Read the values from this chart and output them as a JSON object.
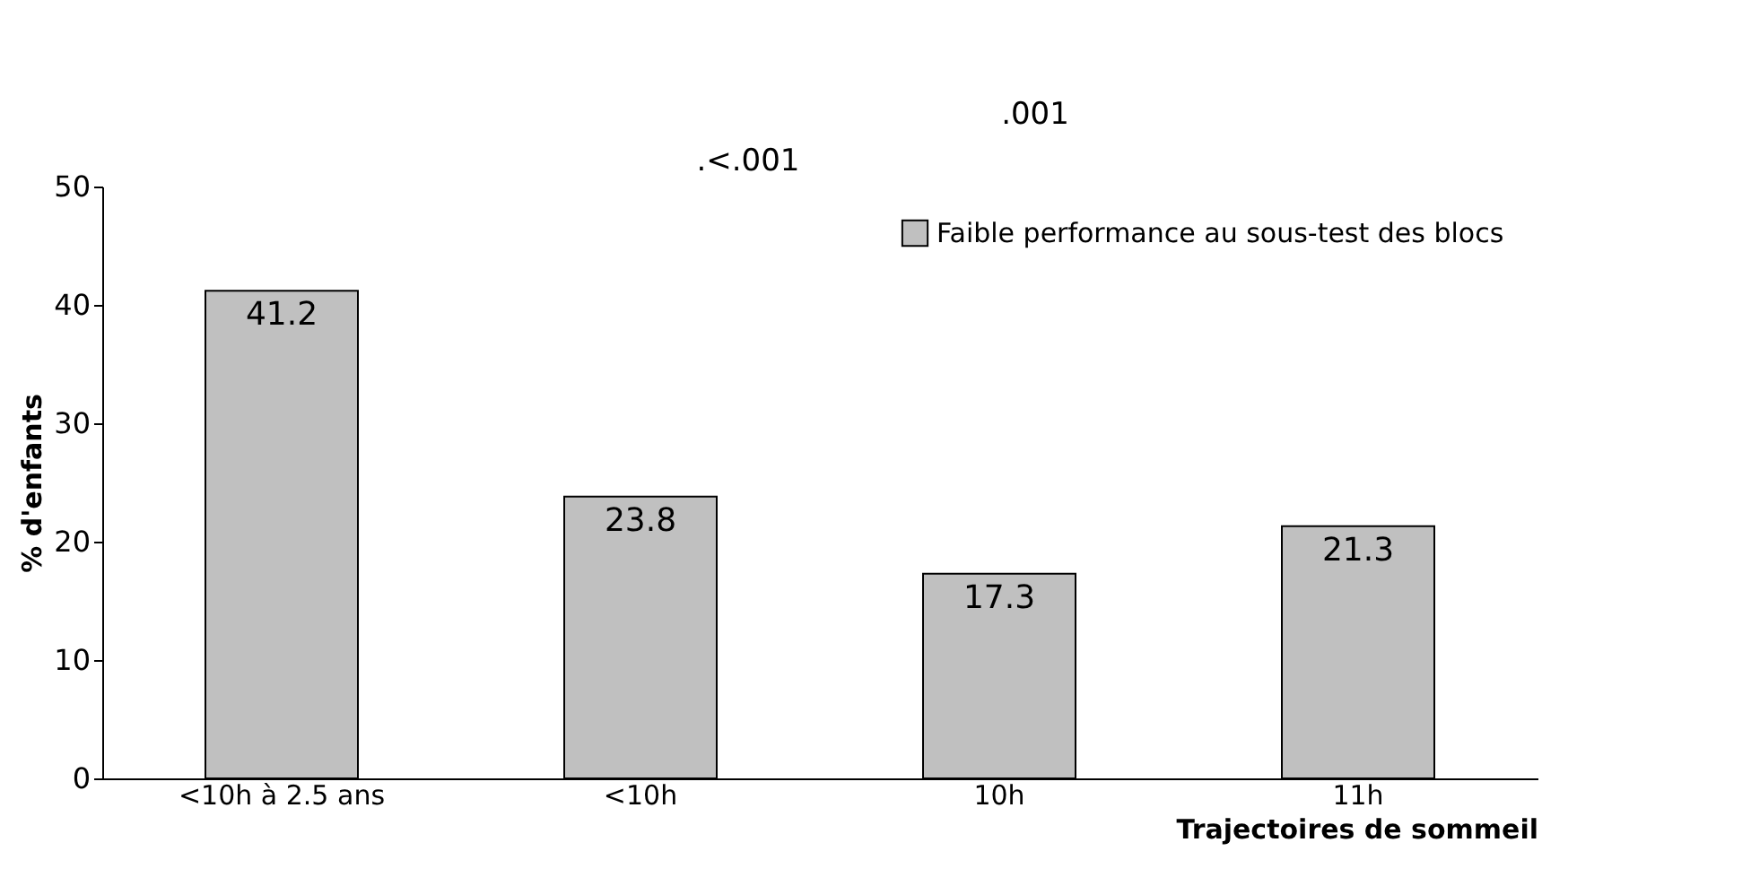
{
  "chart_data": {
    "type": "bar",
    "xlabel": "Trajectoires de sommeil",
    "ylabel": "% d'enfants",
    "categories": [
      "<10h à 2.5 ans",
      "<10h",
      "10h",
      "11h"
    ],
    "series": [
      {
        "name": "Faible performance au sous-test des blocs",
        "color": "#c0c0c0",
        "values": [
          41.2,
          23.8,
          17.3,
          21.3
        ]
      }
    ],
    "ylim": [
      0,
      50
    ],
    "yticks": [
      0,
      10,
      20,
      30,
      40,
      50
    ],
    "grid": false,
    "legend": "top right",
    "data_labels": true,
    "annotations": [
      ".001",
      ".<.001"
    ]
  }
}
